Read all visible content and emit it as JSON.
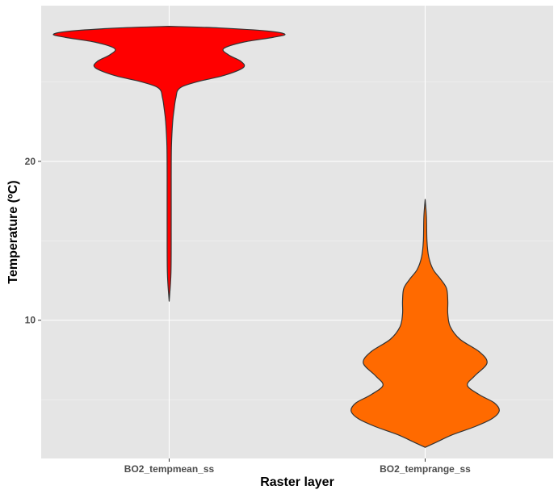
{
  "chart_data": {
    "type": "violin",
    "title": "",
    "xlabel": "Raster layer",
    "ylabel": "Temperature (ºC)",
    "ylim": [
      1.3,
      29.8
    ],
    "yticks": [
      10,
      20
    ],
    "grid": true,
    "categories": [
      "BO2_tempmean_ss",
      "BO2_temprange_ss"
    ],
    "series": [
      {
        "category": "BO2_tempmean_ss",
        "color": "#ff0000",
        "min": 11.2,
        "max": 28.5,
        "density": [
          [
            11.2,
            0.0
          ],
          [
            13.0,
            0.005
          ],
          [
            16.0,
            0.006
          ],
          [
            19.0,
            0.006
          ],
          [
            21.0,
            0.007
          ],
          [
            22.5,
            0.012
          ],
          [
            23.3,
            0.018
          ],
          [
            24.0,
            0.025
          ],
          [
            24.6,
            0.04
          ],
          [
            25.0,
            0.11
          ],
          [
            25.4,
            0.22
          ],
          [
            25.9,
            0.3
          ],
          [
            26.3,
            0.29
          ],
          [
            26.7,
            0.24
          ],
          [
            27.1,
            0.22
          ],
          [
            27.5,
            0.3
          ],
          [
            27.8,
            0.42
          ],
          [
            28.0,
            0.47
          ],
          [
            28.2,
            0.4
          ],
          [
            28.4,
            0.2
          ],
          [
            28.5,
            0.0
          ]
        ]
      },
      {
        "category": "BO2_temprange_ss",
        "color": "#ff6a00",
        "min": 2.0,
        "max": 17.6,
        "density": [
          [
            2.0,
            0.0
          ],
          [
            2.3,
            0.04
          ],
          [
            2.8,
            0.11
          ],
          [
            3.3,
            0.2
          ],
          [
            3.8,
            0.27
          ],
          [
            4.3,
            0.3
          ],
          [
            4.8,
            0.28
          ],
          [
            5.3,
            0.22
          ],
          [
            5.9,
            0.17
          ],
          [
            6.5,
            0.2
          ],
          [
            7.3,
            0.25
          ],
          [
            8.0,
            0.22
          ],
          [
            8.8,
            0.14
          ],
          [
            9.6,
            0.1
          ],
          [
            10.4,
            0.09
          ],
          [
            11.2,
            0.09
          ],
          [
            12.0,
            0.085
          ],
          [
            12.6,
            0.06
          ],
          [
            13.2,
            0.03
          ],
          [
            14.0,
            0.012
          ],
          [
            15.0,
            0.005
          ],
          [
            16.5,
            0.003
          ],
          [
            17.6,
            0.0
          ]
        ]
      }
    ]
  }
}
